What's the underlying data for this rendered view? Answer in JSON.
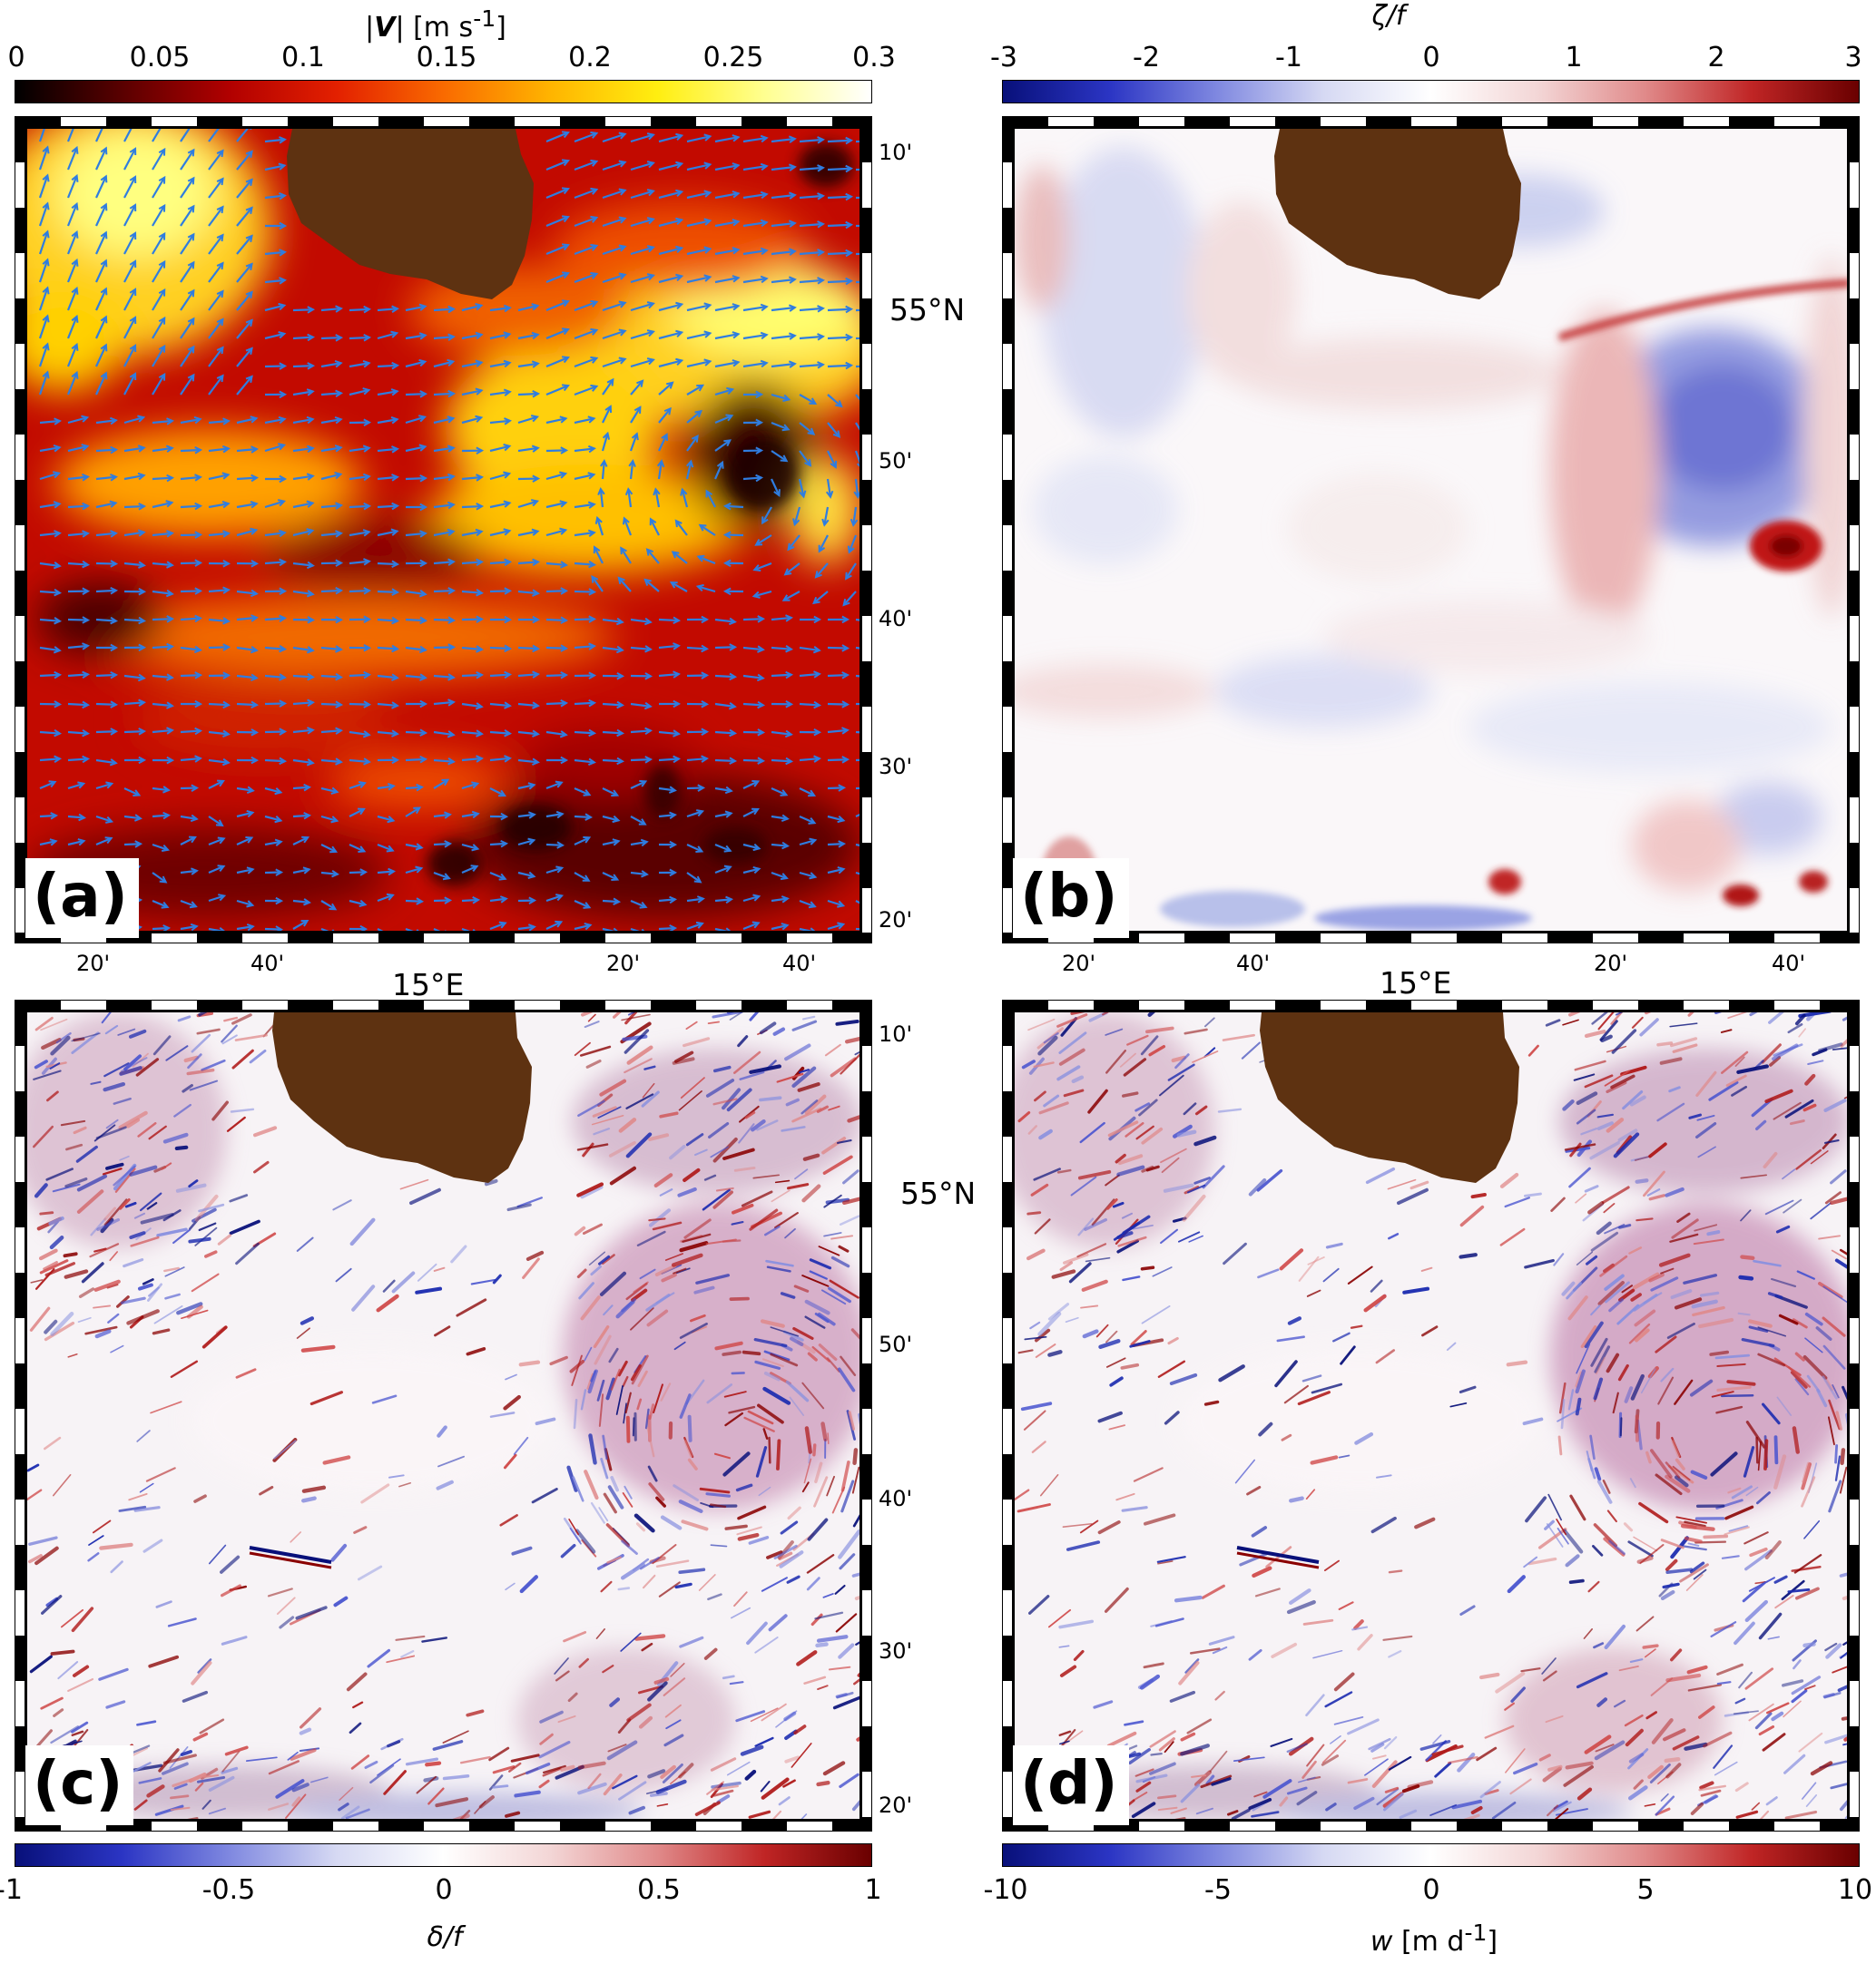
{
  "colorbars": {
    "a": {
      "title": "|V| [m s⁻¹]",
      "ticks": [
        "0",
        "0.05",
        "0.1",
        "0.15",
        "0.2",
        "0.25",
        "0.3"
      ],
      "colormap": [
        "#000000",
        "#5a0000",
        "#b10000",
        "#e32000",
        "#f96a00",
        "#ffb400",
        "#ffee10",
        "#ffff90",
        "#ffffff"
      ]
    },
    "b": {
      "title": "ζ/f",
      "ticks": [
        "-3",
        "-2",
        "-1",
        "0",
        "1",
        "2",
        "3"
      ],
      "colormap": [
        "#08107a",
        "#2b35c4",
        "#7f88e0",
        "#d6d9f3",
        "#ffffff",
        "#f3d6d6",
        "#e08a8a",
        "#c02525",
        "#6a0000"
      ]
    },
    "c": {
      "title": "δ/f",
      "ticks": [
        "-1",
        "-0.5",
        "0",
        "0.5",
        "1"
      ],
      "colormap": [
        "#08107a",
        "#2b35c4",
        "#7f88e0",
        "#d6d9f3",
        "#ffffff",
        "#f3d6d6",
        "#e08a8a",
        "#c02525",
        "#6a0000"
      ]
    },
    "d": {
      "title": "w [m d⁻¹]",
      "ticks": [
        "-10",
        "-5",
        "0",
        "5",
        "10"
      ],
      "colormap": [
        "#08107a",
        "#2b35c4",
        "#7f88e0",
        "#d6d9f3",
        "#ffffff",
        "#f3d6d6",
        "#e08a8a",
        "#c02525",
        "#6a0000"
      ]
    }
  },
  "panels": {
    "a": {
      "label": "(a)"
    },
    "b": {
      "label": "(b)"
    },
    "c": {
      "label": "(c)"
    },
    "d": {
      "label": "(d)"
    }
  },
  "axes": {
    "lon_ticks": [
      "20'",
      "40'",
      "20'",
      "40'"
    ],
    "lon_center": "15°E",
    "lat_ticks": [
      "10'",
      "55°N",
      "50'",
      "40'",
      "30'",
      "20'"
    ]
  },
  "colors": {
    "land": "#5e3211",
    "vectors": "#2f7de0",
    "frame": "#000000"
  }
}
